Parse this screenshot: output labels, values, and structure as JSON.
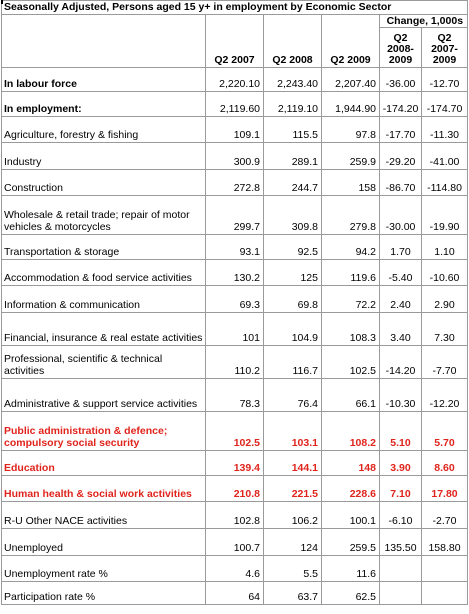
{
  "title": "Seasonally Adjusted, Persons aged 15 y+ in employment by Economic Sector",
  "change_header": "Change, 1,000s",
  "columns": [
    "Q2 2007",
    "Q2 2008",
    "Q2 2009",
    "Q2 2008- 2009",
    "Q2 2007- 2009"
  ],
  "rows": [
    {
      "label": "In labour force",
      "values": [
        "2,220.10",
        "2,243.40",
        "2,207.40",
        "-36.00",
        "-12.70"
      ],
      "style": "bold"
    },
    {
      "label": "In employment:",
      "values": [
        "2,119.60",
        "2,119.10",
        "1,944.90",
        "-174.20",
        "-174.70"
      ],
      "style": "bold"
    },
    {
      "label": "Agriculture, forestry & fishing",
      "values": [
        "109.1",
        "115.5",
        "97.8",
        "-17.70",
        "-11.30"
      ],
      "style": ""
    },
    {
      "label": "Industry",
      "values": [
        "300.9",
        "289.1",
        "259.9",
        "-29.20",
        "-41.00"
      ],
      "style": ""
    },
    {
      "label": "Construction",
      "values": [
        "272.8",
        "244.7",
        "158",
        "-86.70",
        "-114.80"
      ],
      "style": ""
    },
    {
      "label": "Wholesale & retail trade; repair of motor vehicles & motorcycles",
      "values": [
        "299.7",
        "309.8",
        "279.8",
        "-30.00",
        "-19.90"
      ],
      "style": ""
    },
    {
      "label": "Transportation & storage",
      "values": [
        "93.1",
        "92.5",
        "94.2",
        "1.70",
        "1.10"
      ],
      "style": ""
    },
    {
      "label": "Accommodation & food service activities",
      "values": [
        "130.2",
        "125",
        "119.6",
        "-5.40",
        "-10.60"
      ],
      "style": ""
    },
    {
      "label": "Information & communication",
      "values": [
        "69.3",
        "69.8",
        "72.2",
        "2.40",
        "2.90"
      ],
      "style": ""
    },
    {
      "label": "Financial, insurance & real estate activities",
      "values": [
        "101",
        "104.9",
        "108.3",
        "3.40",
        "7.30"
      ],
      "style": ""
    },
    {
      "label": "Professional, scientific & technical activities",
      "values": [
        "110.2",
        "116.7",
        "102.5",
        "-14.20",
        "-7.70"
      ],
      "style": ""
    },
    {
      "label": "Administrative & support service activities",
      "values": [
        "78.3",
        "76.4",
        "66.1",
        "-10.30",
        "-12.20"
      ],
      "style": ""
    },
    {
      "label": "Public administration & defence; compulsory social security",
      "values": [
        "102.5",
        "103.1",
        "108.2",
        "5.10",
        "5.70"
      ],
      "style": "red"
    },
    {
      "label": "Education",
      "values": [
        "139.4",
        "144.1",
        "148",
        "3.90",
        "8.60"
      ],
      "style": "red"
    },
    {
      "label": "Human health & social work activities",
      "values": [
        "210.8",
        "221.5",
        "228.6",
        "7.10",
        "17.80"
      ],
      "style": "red"
    },
    {
      "label": "R-U Other NACE activities",
      "values": [
        "102.8",
        "106.2",
        "100.1",
        "-6.10",
        "-2.70"
      ],
      "style": ""
    },
    {
      "label": "Unemployed",
      "values": [
        "100.7",
        "124",
        "259.5",
        "135.50",
        "158.80"
      ],
      "style": ""
    },
    {
      "label": "Unemployment rate %",
      "values": [
        "4.6",
        "5.5",
        "11.6",
        "",
        ""
      ],
      "style": ""
    },
    {
      "label": "Participation rate %",
      "values": [
        "64",
        "63.7",
        "62.5",
        "",
        ""
      ],
      "style": ""
    }
  ]
}
